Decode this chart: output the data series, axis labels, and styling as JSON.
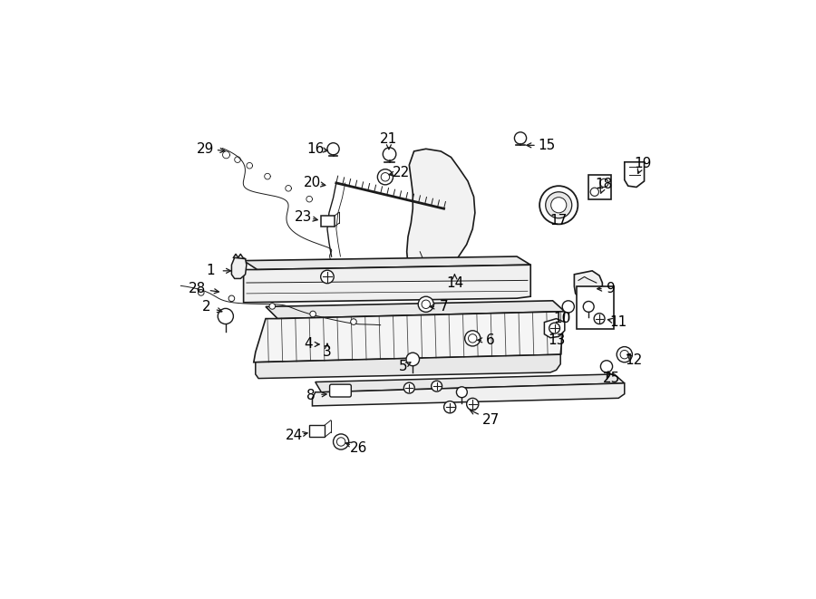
{
  "background_color": "#ffffff",
  "line_color": "#1a1a1a",
  "text_color": "#000000",
  "fig_width": 9.0,
  "fig_height": 6.61,
  "dpi": 100,
  "label_fontsize": 11,
  "labels": {
    "1": [
      0.17,
      0.548,
      0.21,
      0.548
    ],
    "2": [
      0.163,
      0.488,
      0.195,
      0.478
    ],
    "3": [
      0.365,
      0.412,
      0.365,
      0.432
    ],
    "4": [
      0.333,
      0.425,
      0.358,
      0.425
    ],
    "5": [
      0.492,
      0.388,
      0.51,
      0.398
    ],
    "6": [
      0.638,
      0.432,
      0.61,
      0.432
    ],
    "7": [
      0.56,
      0.488,
      0.53,
      0.488
    ],
    "8": [
      0.338,
      0.34,
      0.37,
      0.342
    ],
    "9": [
      0.84,
      0.518,
      0.81,
      0.518
    ],
    "10": [
      0.758,
      0.468,
      0.768,
      0.482
    ],
    "11": [
      0.852,
      0.462,
      0.828,
      0.468
    ],
    "12": [
      0.878,
      0.398,
      0.862,
      0.412
    ],
    "13": [
      0.748,
      0.432,
      0.758,
      0.445
    ],
    "14": [
      0.578,
      0.528,
      0.578,
      0.548
    ],
    "15": [
      0.732,
      0.758,
      0.692,
      0.758
    ],
    "16": [
      0.345,
      0.752,
      0.372,
      0.748
    ],
    "17": [
      0.752,
      0.632,
      0.752,
      0.648
    ],
    "18": [
      0.828,
      0.692,
      0.82,
      0.672
    ],
    "19": [
      0.892,
      0.728,
      0.882,
      0.705
    ],
    "20": [
      0.34,
      0.695,
      0.368,
      0.69
    ],
    "21": [
      0.468,
      0.768,
      0.468,
      0.745
    ],
    "22": [
      0.488,
      0.712,
      0.462,
      0.708
    ],
    "23": [
      0.325,
      0.638,
      0.355,
      0.632
    ],
    "24": [
      0.31,
      0.272,
      0.338,
      0.278
    ],
    "25": [
      0.84,
      0.368,
      0.832,
      0.385
    ],
    "26": [
      0.418,
      0.252,
      0.39,
      0.262
    ],
    "27": [
      0.638,
      0.298,
      0.598,
      0.318
    ],
    "28": [
      0.148,
      0.518,
      0.19,
      0.512
    ],
    "29": [
      0.162,
      0.752,
      0.2,
      0.748
    ]
  }
}
